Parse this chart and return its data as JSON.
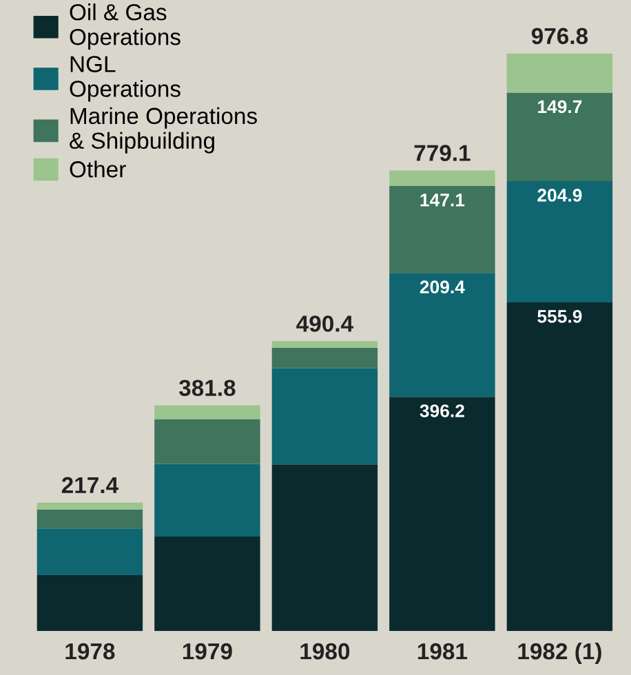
{
  "chart_data": {
    "type": "bar",
    "stacked": true,
    "categories": [
      "1978",
      "1979",
      "1980",
      "1981",
      "1982 (1)"
    ],
    "series": [
      {
        "name": "Oil & Gas\nOperations",
        "color": "#0b2a2e",
        "values": [
          94.7,
          159.8,
          282.0,
          396.2,
          555.9
        ],
        "value_labels": [
          null,
          null,
          null,
          "396.2",
          "555.9"
        ]
      },
      {
        "name": "NGL\nOperations",
        "color": "#0f6670",
        "values": [
          78.9,
          122.9,
          162.8,
          209.4,
          204.9
        ],
        "value_labels": [
          null,
          null,
          null,
          "209.4",
          "204.9"
        ]
      },
      {
        "name": "Marine Operations\n& Shipbuilding",
        "color": "#3e755c",
        "values": [
          32.1,
          75.7,
          34.4,
          147.1,
          149.7
        ],
        "value_labels": [
          null,
          null,
          null,
          "147.1",
          "149.7"
        ]
      },
      {
        "name": "Other",
        "color": "#9cc48e",
        "values": [
          11.7,
          23.4,
          11.2,
          26.4,
          66.3
        ]
      }
    ],
    "totals": [
      "217.4",
      "381.8",
      "490.4",
      "779.1",
      "976.8"
    ],
    "legend": "top left",
    "grid": false
  }
}
